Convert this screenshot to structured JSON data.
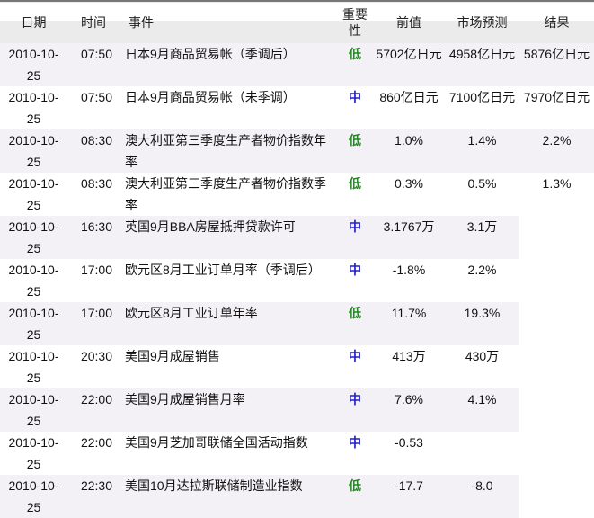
{
  "headers": {
    "date": "日期",
    "time": "时间",
    "event": "事件",
    "importance": "重要性",
    "previous": "前值",
    "forecast": "市场预测",
    "result": "结果"
  },
  "colors": {
    "low": "#1e8c1e",
    "mid": "#2020c8",
    "stripe": "#f3f1f6"
  },
  "rows": [
    {
      "date": "2010-10-25",
      "time": "07:50",
      "event": "日本9月商品贸易帐（季调后）",
      "importance": "低",
      "previous": "5702亿日元",
      "forecast": "4958亿日元",
      "result": "5876亿日元"
    },
    {
      "date": "2010-10-25",
      "time": "07:50",
      "event": "日本9月商品贸易帐（未季调）",
      "importance": "中",
      "previous": "860亿日元",
      "forecast": "7100亿日元",
      "result": "7970亿日元"
    },
    {
      "date": "2010-10-25",
      "time": "08:30",
      "event": "澳大利亚第三季度生产者物价指数年率",
      "importance": "低",
      "previous": "1.0%",
      "forecast": "1.4%",
      "result": "2.2%"
    },
    {
      "date": "2010-10-25",
      "time": "08:30",
      "event": "澳大利亚第三季度生产者物价指数季率",
      "importance": "低",
      "previous": "0.3%",
      "forecast": "0.5%",
      "result": "1.3%"
    },
    {
      "date": "2010-10-25",
      "time": "16:30",
      "event": "英国9月BBA房屋抵押贷款许可",
      "importance": "中",
      "previous": "3.1767万",
      "forecast": "3.1万",
      "result": ""
    },
    {
      "date": "2010-10-25",
      "time": "17:00",
      "event": "欧元区8月工业订单月率（季调后）",
      "importance": "中",
      "previous": "-1.8%",
      "forecast": "2.2%",
      "result": ""
    },
    {
      "date": "2010-10-25",
      "time": "17:00",
      "event": "欧元区8月工业订单年率",
      "importance": "低",
      "previous": "11.7%",
      "forecast": "19.3%",
      "result": ""
    },
    {
      "date": "2010-10-25",
      "time": "20:30",
      "event": "美国9月成屋销售",
      "importance": "中",
      "previous": "413万",
      "forecast": "430万",
      "result": ""
    },
    {
      "date": "2010-10-25",
      "time": "22:00",
      "event": "美国9月成屋销售月率",
      "importance": "中",
      "previous": "7.6%",
      "forecast": "4.1%",
      "result": ""
    },
    {
      "date": "2010-10-25",
      "time": "22:00",
      "event": "美国9月芝加哥联储全国活动指数",
      "importance": "中",
      "previous": "-0.53",
      "forecast": "",
      "result": ""
    },
    {
      "date": "2010-10-25",
      "time": "22:30",
      "event": "美国10月达拉斯联储制造业指数",
      "importance": "低",
      "previous": "-17.7",
      "forecast": "-8.0",
      "result": ""
    }
  ]
}
